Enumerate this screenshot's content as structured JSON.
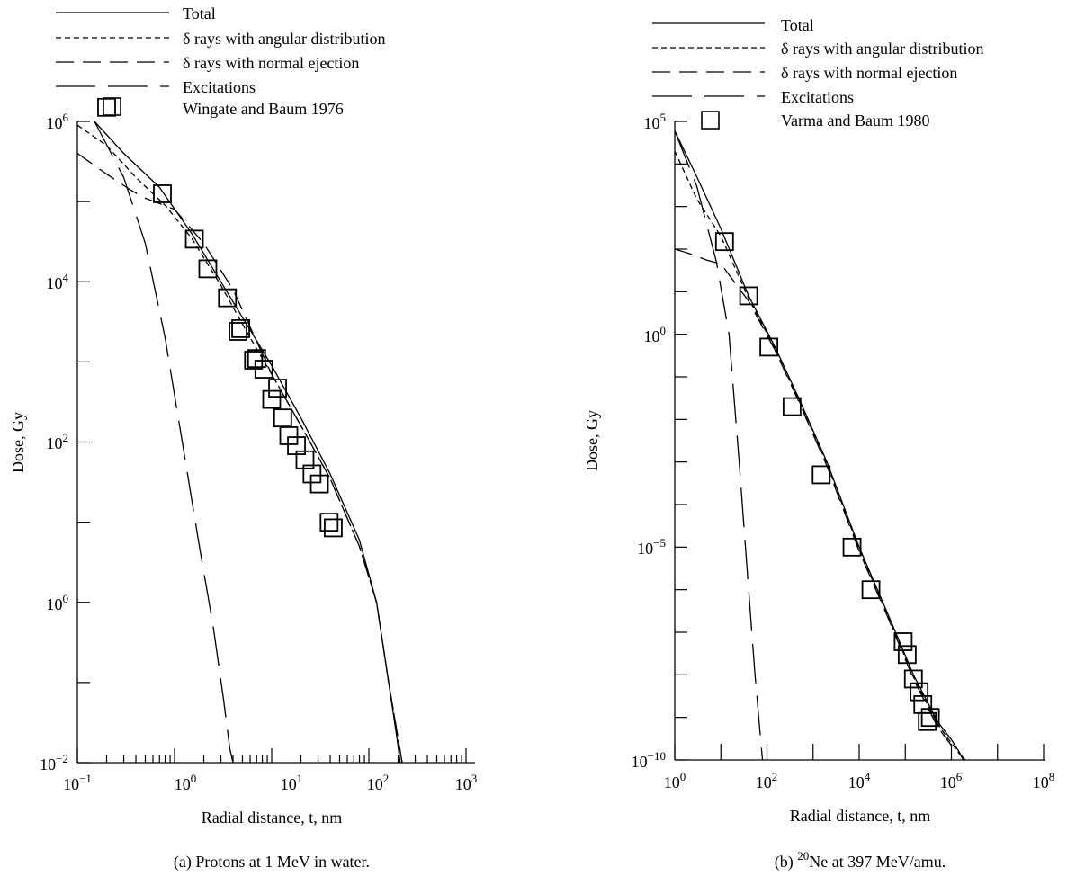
{
  "chart_data": [
    {
      "type": "line",
      "caption": "(a)  Protons at 1 MeV in water.",
      "xlabel": "Radial distance, t, nm",
      "ylabel": "Dose, Gy",
      "xscale": "log",
      "yscale": "log",
      "xlim": [
        0.1,
        1000
      ],
      "ylim": [
        0.01,
        1000000
      ],
      "x_tick_labels": [
        {
          "value": 0.1,
          "base": "10",
          "exp": "−1"
        },
        {
          "value": 1,
          "base": "10",
          "exp": "0"
        },
        {
          "value": 10,
          "base": "10",
          "exp": "1"
        },
        {
          "value": 100,
          "base": "10",
          "exp": "2"
        },
        {
          "value": 1000,
          "base": "10",
          "exp": "3"
        }
      ],
      "y_tick_labels": [
        {
          "value": 0.01,
          "base": "10",
          "exp": "−2"
        },
        {
          "value": 1,
          "base": "10",
          "exp": "0"
        },
        {
          "value": 100,
          "base": "10",
          "exp": "2"
        },
        {
          "value": 10000,
          "base": "10",
          "exp": "4"
        },
        {
          "value": 1000000,
          "base": "10",
          "exp": "6"
        }
      ],
      "legend_position": "top",
      "legend": [
        {
          "label": "Total",
          "style": "solid"
        },
        {
          "label": "δ rays with angular distribution",
          "style": "short-dash"
        },
        {
          "label": "δ rays with normal ejection",
          "style": "long-dash"
        },
        {
          "label": "Excitations",
          "style": "long-gap-dash"
        },
        {
          "label": "Wingate and Baum 1976",
          "style": "square-marker"
        }
      ],
      "series": [
        {
          "name": "Total",
          "style": "solid",
          "x": [
            0.15,
            0.3,
            0.7,
            1.5,
            3,
            6,
            10,
            20,
            40,
            80,
            120,
            160,
            195,
            210
          ],
          "y": [
            1000000,
            400000,
            150000,
            40000,
            10000,
            2500,
            900,
            200,
            40,
            6,
            1,
            0.1,
            0.02,
            0.01
          ]
        },
        {
          "name": "δ rays with angular distribution",
          "style": "short-dash",
          "x": [
            0.1,
            0.2,
            0.4,
            0.8,
            1.5,
            3,
            6,
            10,
            20,
            40,
            80,
            120,
            160,
            200,
            220
          ],
          "y": [
            900000,
            500000,
            200000,
            90000,
            35000,
            9000,
            2000,
            700,
            160,
            35,
            5,
            1,
            0.1,
            0.02,
            0.01
          ]
        },
        {
          "name": "δ rays with normal ejection",
          "style": "long-dash",
          "x": [
            0.1,
            0.2,
            0.35,
            0.5,
            1,
            2,
            4,
            10,
            20,
            40,
            80,
            120,
            160,
            200,
            220
          ],
          "y": [
            400000,
            220000,
            140000,
            110000,
            80000,
            30000,
            8000,
            700,
            160,
            35,
            5,
            1,
            0.1,
            0.02,
            0.01
          ]
        },
        {
          "name": "Excitations",
          "style": "long-gap-dash",
          "x": [
            0.15,
            0.3,
            0.5,
            0.8,
            1.2,
            1.8,
            2.5,
            3.2,
            3.7,
            4
          ],
          "y": [
            1000000,
            200000,
            30000,
            2000,
            100,
            5,
            0.5,
            0.06,
            0.015,
            0.01
          ]
        },
        {
          "name": "Wingate and Baum 1976",
          "style": "square-marker",
          "x": [
            0.2,
            0.75,
            1.6,
            2.2,
            3.5,
            4.5,
            4.8,
            6.5,
            7,
            8.3,
            10,
            11.5,
            13,
            15,
            18,
            22,
            26,
            31,
            39,
            43
          ],
          "y": [
            1500000,
            125000,
            34000,
            14500,
            6300,
            2400,
            2600,
            1050,
            1100,
            810,
            340,
            470,
            200,
            120,
            90,
            60,
            40,
            30,
            10,
            8.5
          ]
        }
      ]
    },
    {
      "type": "line",
      "caption_prefix": "(b)  ",
      "caption_sup": "20",
      "caption_rest": "Ne at 397 MeV/amu.",
      "xlabel": "Radial distance, t, nm",
      "ylabel": "Dose, Gy",
      "xscale": "log",
      "yscale": "log",
      "xlim": [
        1,
        100000000
      ],
      "ylim": [
        1e-10,
        100000
      ],
      "x_tick_labels": [
        {
          "value": 1,
          "base": "10",
          "exp": "0"
        },
        {
          "value": 100,
          "base": "10",
          "exp": "2"
        },
        {
          "value": 10000,
          "base": "10",
          "exp": "4"
        },
        {
          "value": 1000000,
          "base": "10",
          "exp": "6"
        },
        {
          "value": 100000000,
          "base": "10",
          "exp": "8"
        }
      ],
      "y_tick_labels": [
        {
          "value": 1e-10,
          "base": "10",
          "exp": "−10"
        },
        {
          "value": 1e-05,
          "base": "10",
          "exp": "−5"
        },
        {
          "value": 1,
          "base": "10",
          "exp": "0"
        },
        {
          "value": 100000,
          "base": "10",
          "exp": "5"
        }
      ],
      "legend_position": "top",
      "legend": [
        {
          "label": "Total",
          "style": "solid"
        },
        {
          "label": "δ rays with angular distribution",
          "style": "short-dash"
        },
        {
          "label": "δ rays with normal ejection",
          "style": "long-dash"
        },
        {
          "label": "Excitations",
          "style": "long-gap-dash"
        },
        {
          "label": "Varma and Baum 1980",
          "style": "square-marker"
        }
      ],
      "series": [
        {
          "name": "Total",
          "style": "solid",
          "x": [
            1,
            3,
            10,
            40,
            150,
            500,
            2000,
            10000,
            40000,
            150000,
            500000,
            1000000,
            1500000,
            1800000
          ],
          "y": [
            60000,
            5000,
            300,
            8,
            0.5,
            0.03,
            0.001,
            1e-05,
            3e-07,
            1e-08,
            8e-10,
            3e-10,
            1.5e-10,
            1e-10
          ]
        },
        {
          "name": "δ rays with angular distribution",
          "style": "short-dash",
          "x": [
            1,
            3,
            10,
            40,
            150,
            500,
            2000,
            10000,
            40000,
            150000,
            500000,
            1000000,
            1500000,
            1900000
          ],
          "y": [
            20000,
            1500,
            200,
            7,
            0.45,
            0.027,
            0.0009,
            9e-06,
            2.7e-07,
            9e-09,
            7e-10,
            2.5e-10,
            1.4e-10,
            1e-10
          ]
        },
        {
          "name": "δ rays with normal ejection",
          "style": "long-dash",
          "x": [
            1,
            2,
            5,
            10,
            40,
            150,
            500,
            2000,
            10000,
            40000,
            150000,
            500000,
            1000000,
            1600000,
            2000000
          ],
          "y": [
            100,
            80,
            55,
            45,
            6,
            0.42,
            0.025,
            0.0008,
            8e-06,
            2.5e-07,
            8e-09,
            6e-10,
            2.2e-10,
            1.3e-10,
            1e-10
          ]
        },
        {
          "name": "Excitations",
          "style": "long-gap-dash",
          "x": [
            1,
            3,
            8,
            15,
            25,
            40,
            55,
            70,
            80
          ],
          "y": [
            60000,
            3000,
            50,
            1,
            0.001,
            1e-06,
            1e-08,
            5e-10,
            1e-10
          ]
        },
        {
          "name": "Varma and Baum 1980",
          "style": "square-marker",
          "x": [
            12,
            40,
            110,
            350,
            1500,
            7000,
            18000,
            90000,
            110000,
            150000,
            200000,
            240000,
            300000,
            350000
          ],
          "y": [
            150,
            8,
            0.5,
            0.02,
            0.0005,
            1e-05,
            1e-06,
            6e-08,
            3e-08,
            8e-09,
            4e-09,
            2e-09,
            8e-10,
            1e-09
          ]
        }
      ]
    }
  ]
}
